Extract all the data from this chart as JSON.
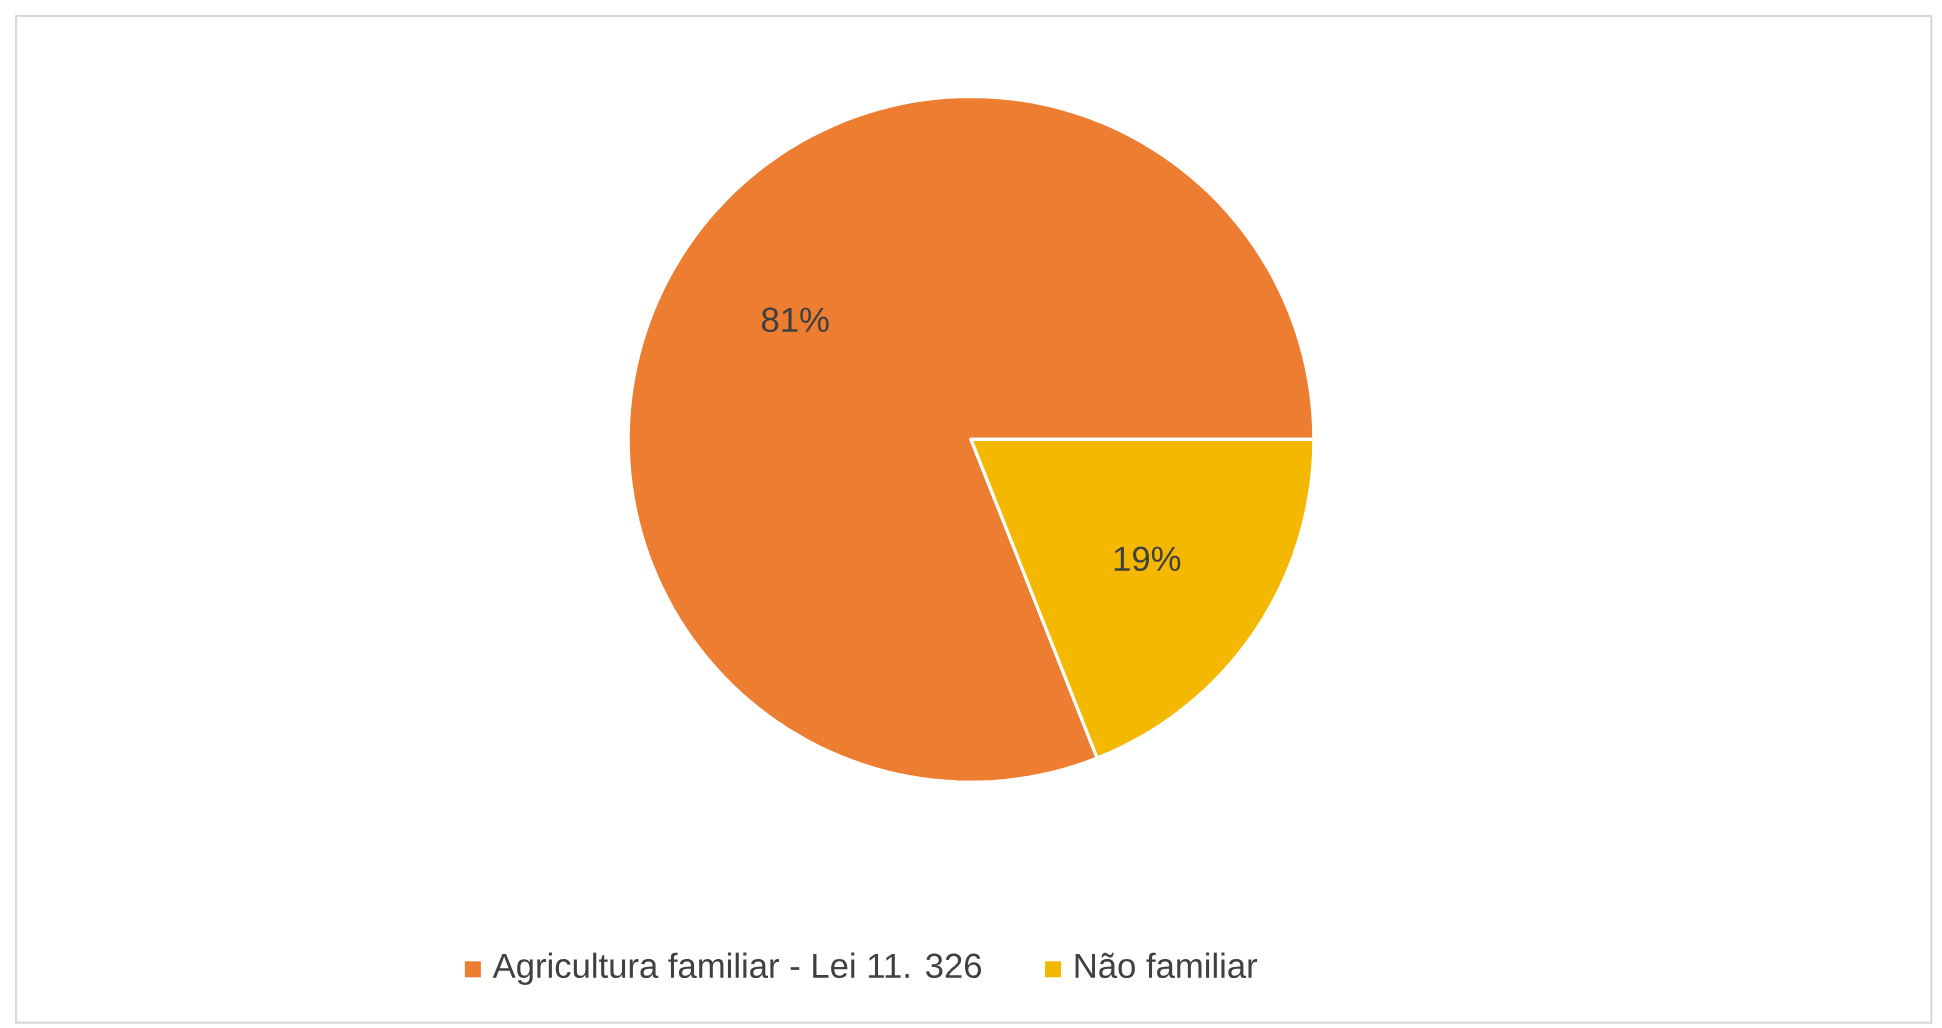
{
  "chart_data": {
    "type": "pie",
    "categories": [
      "Agricultura familiar - Lei 11. 326",
      "Não familiar"
    ],
    "values": [
      81,
      19
    ],
    "value_labels": [
      "81%",
      "19%"
    ],
    "colors": [
      "#ed7d31",
      "#f5b800"
    ],
    "legend": "bottom"
  }
}
